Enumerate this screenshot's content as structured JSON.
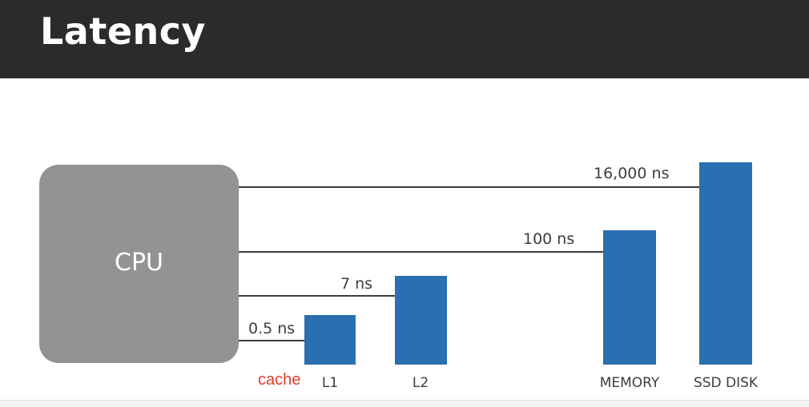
{
  "header": {
    "title": "Latency"
  },
  "cpu": {
    "label": "CPU"
  },
  "annotation": {
    "text": "cache"
  },
  "colors": {
    "header_bg": "#2b2b2b",
    "cpu_box": "#939396",
    "bar": "#2a6fb0",
    "annotation": "#e33b2e"
  },
  "chart_data": {
    "type": "bar",
    "title": "",
    "categories": [
      "L1",
      "L2",
      "MEMORY",
      "SSD DISK"
    ],
    "latency_labels": [
      "0.5 ns",
      "7 ns",
      "100 ns",
      "16,000 ns"
    ],
    "values_ns": [
      0.5,
      7,
      100,
      16000
    ]
  }
}
